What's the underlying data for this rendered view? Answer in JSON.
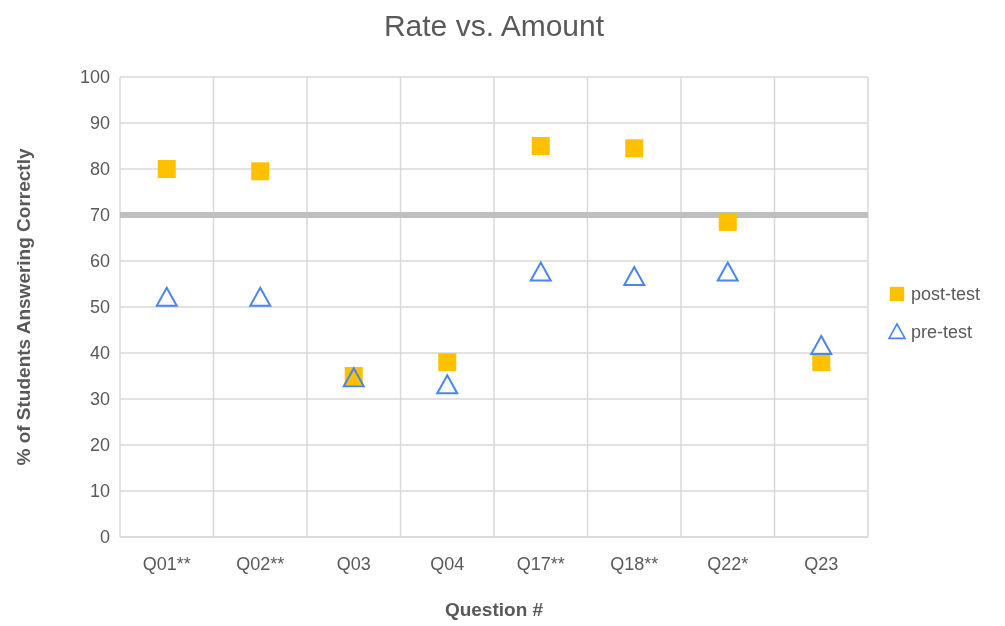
{
  "chart_data": {
    "type": "scatter",
    "title": "Rate vs. Amount",
    "xlabel": "Question #",
    "ylabel": "% of Students Answering Correctly",
    "categories": [
      "Q01**",
      "Q02**",
      "Q03",
      "Q04",
      "Q17**",
      "Q18**",
      "Q22*",
      "Q23"
    ],
    "series": [
      {
        "name": "post-test",
        "color": "#ffc000",
        "marker": "square",
        "values": [
          80,
          79.5,
          35,
          38,
          85,
          84.5,
          68.5,
          38
        ]
      },
      {
        "name": "pre-test",
        "color": "#4a86e8",
        "marker": "triangle",
        "values": [
          52,
          52,
          34.5,
          33,
          57.5,
          56.5,
          57.5,
          41.5
        ]
      }
    ],
    "ylim": [
      0,
      100
    ],
    "yticks": [
      0,
      10,
      20,
      30,
      40,
      50,
      60,
      70,
      80,
      90,
      100
    ],
    "grid": true,
    "legend": "right",
    "ref_lines": [
      {
        "axis": "y",
        "value": 70,
        "color": "#bfbfbf"
      }
    ]
  }
}
